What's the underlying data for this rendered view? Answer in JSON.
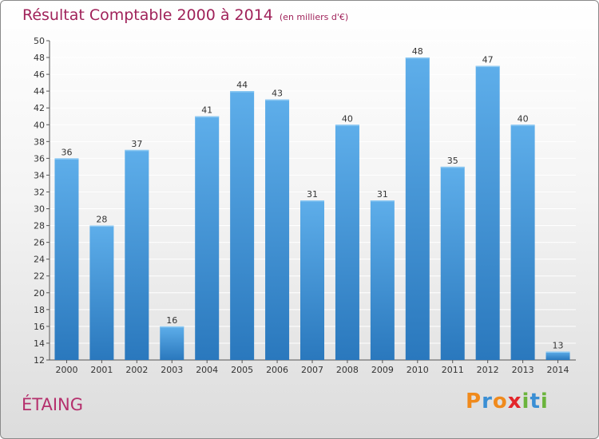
{
  "page": {
    "title": "Résultat Comptable 2000 à 2014",
    "unit": "(en milliers d'€)",
    "city": "ÉTAING",
    "brand": "Proxiti"
  },
  "colors": {
    "title": "#a0225a",
    "city": "#b5306d",
    "bar_top": "#5eaeea",
    "bar_bottom": "#2a78bd",
    "gridline": "#ffffff",
    "brand_letters": [
      "#f08a1c",
      "#3a8fd4",
      "#f08a1c",
      "#e3262b",
      "#6bb43c",
      "#3a8fd4",
      "#6bb43c"
    ]
  },
  "chart_data": {
    "type": "bar",
    "title": "Résultat Comptable 2000 à 2014",
    "subtitle": "(en milliers d'€)",
    "xlabel": "",
    "ylabel": "",
    "categories": [
      "2000",
      "2001",
      "2002",
      "2003",
      "2004",
      "2005",
      "2006",
      "2007",
      "2008",
      "2009",
      "2010",
      "2011",
      "2012",
      "2013",
      "2014"
    ],
    "values": [
      36,
      28,
      37,
      16,
      41,
      44,
      43,
      31,
      40,
      31,
      48,
      35,
      47,
      40,
      13
    ],
    "ylim": [
      12,
      50
    ],
    "yticks": [
      12,
      14,
      16,
      18,
      20,
      22,
      24,
      26,
      28,
      30,
      32,
      34,
      36,
      38,
      40,
      42,
      44,
      46,
      48,
      50
    ],
    "grid": true,
    "data_labels": true
  }
}
